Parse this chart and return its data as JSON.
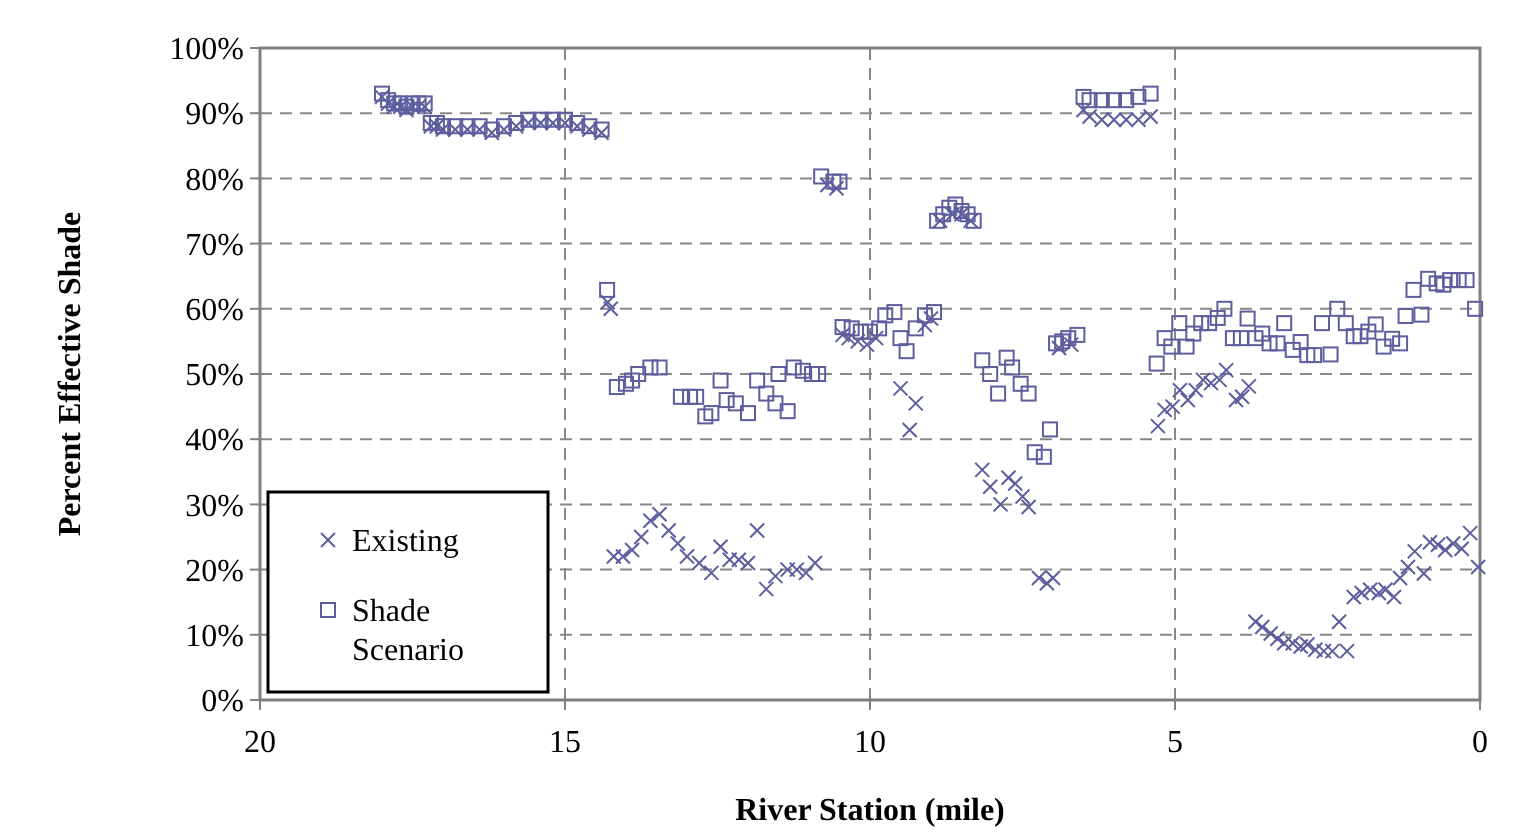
{
  "chart_data": {
    "type": "scatter",
    "xlabel": "River Station (mile)",
    "ylabel": "Percent Effective Shade",
    "xlim": [
      20,
      0
    ],
    "xticks": [
      20,
      15,
      10,
      5,
      0
    ],
    "ylim": [
      0,
      100
    ],
    "yticks": [
      {
        "value": 0,
        "label": "0%"
      },
      {
        "value": 10,
        "label": "10%"
      },
      {
        "value": 20,
        "label": "20%"
      },
      {
        "value": 30,
        "label": "30%"
      },
      {
        "value": 40,
        "label": "40%"
      },
      {
        "value": 50,
        "label": "50%"
      },
      {
        "value": 60,
        "label": "60%"
      },
      {
        "value": 70,
        "label": "70%"
      },
      {
        "value": 80,
        "label": "80%"
      },
      {
        "value": 90,
        "label": "90%"
      },
      {
        "value": 100,
        "label": "100%"
      }
    ],
    "grid": true,
    "legend": "bottom left",
    "series": [
      {
        "name": "Existing",
        "color": "#5e5e9e",
        "marker": "cross",
        "x": [
          18.0,
          17.9,
          17.8,
          17.7,
          17.6,
          17.5,
          17.4,
          17.3,
          17.2,
          17.1,
          17.0,
          16.8,
          16.6,
          16.4,
          16.2,
          16.0,
          15.8,
          15.6,
          15.4,
          15.2,
          15.0,
          14.8,
          14.6,
          14.4,
          14.3,
          14.25,
          14.2,
          14.05,
          13.9,
          13.75,
          13.6,
          13.45,
          13.3,
          13.15,
          13.0,
          12.8,
          12.6,
          12.45,
          12.3,
          12.15,
          12.0,
          11.85,
          11.7,
          11.55,
          11.35,
          11.2,
          11.05,
          10.9,
          10.7,
          10.55,
          10.45,
          10.35,
          10.2,
          10.05,
          9.9,
          9.5,
          9.35,
          9.25,
          9.1,
          9.0,
          8.85,
          8.65,
          8.5,
          8.35,
          8.16,
          8.03,
          7.86,
          7.73,
          7.62,
          7.5,
          7.4,
          7.23,
          7.1,
          7.0,
          6.9,
          6.7,
          6.5,
          6.4,
          6.2,
          6.0,
          5.8,
          5.6,
          5.4,
          5.28,
          5.17,
          5.04,
          4.92,
          4.79,
          4.66,
          4.54,
          4.41,
          4.27,
          4.16,
          4.0,
          3.9,
          3.79,
          3.68,
          3.57,
          3.43,
          3.32,
          3.21,
          3.07,
          2.94,
          2.83,
          2.7,
          2.56,
          2.42,
          2.31,
          2.18,
          2.07,
          1.94,
          1.8,
          1.66,
          1.55,
          1.41,
          1.31,
          1.18,
          1.07,
          0.92,
          0.82,
          0.69,
          0.57,
          0.44,
          0.3,
          0.16,
          0.03
        ],
        "values": [
          92.5,
          91.5,
          91,
          91,
          90.5,
          91,
          91,
          91,
          88,
          88,
          87.5,
          87.5,
          87.5,
          87.5,
          87,
          87.5,
          88,
          88.5,
          88.5,
          88.5,
          88.5,
          88,
          87.5,
          87,
          61,
          60,
          22,
          22,
          23,
          25,
          27.5,
          28.5,
          26,
          24,
          22,
          21,
          19.5,
          23.5,
          21.5,
          21.5,
          21,
          26,
          17,
          19,
          20,
          20,
          19.5,
          21,
          79,
          78.5,
          56,
          55.5,
          55,
          54.5,
          55.5,
          47.8,
          41.4,
          45.5,
          57.5,
          58.5,
          73.5,
          74.5,
          74.5,
          73.5,
          35.3,
          32.7,
          30,
          34.1,
          33.2,
          31.2,
          29.6,
          18.7,
          17.9,
          18.7,
          54,
          54.5,
          90.5,
          89.5,
          89,
          89,
          89,
          89,
          89.5,
          42,
          44.5,
          45,
          47.5,
          46,
          47.5,
          49.1,
          48.6,
          49.1,
          50.6,
          46,
          46.5,
          48.1,
          12,
          11.2,
          10.2,
          9.4,
          8.7,
          8.7,
          8.2,
          8.5,
          7.7,
          7.5,
          7.5,
          12,
          7.5,
          15.8,
          16.4,
          16.9,
          16.4,
          16.9,
          15.8,
          18.7,
          20.4,
          22.8,
          19.4,
          24.2,
          23.8,
          23,
          24,
          23.2,
          25.6,
          20.4
        ]
      },
      {
        "name": "Shade Scenario",
        "color": "#5e5e9e",
        "marker": "square",
        "x": [
          18.0,
          17.9,
          17.8,
          17.7,
          17.6,
          17.5,
          17.4,
          17.3,
          17.2,
          17.1,
          17.0,
          16.8,
          16.6,
          16.4,
          16.2,
          16.0,
          15.8,
          15.6,
          15.4,
          15.2,
          15.0,
          14.8,
          14.6,
          14.4,
          14.31,
          14.15,
          14.0,
          13.9,
          13.8,
          13.6,
          13.45,
          13.1,
          12.95,
          12.85,
          12.7,
          12.6,
          12.45,
          12.35,
          12.2,
          12.0,
          11.85,
          11.7,
          11.55,
          11.5,
          11.35,
          11.25,
          11.1,
          10.95,
          10.85,
          10.8,
          10.6,
          10.5,
          10.45,
          10.3,
          10.15,
          10.0,
          9.85,
          9.75,
          9.6,
          9.5,
          9.4,
          9.25,
          9.1,
          8.95,
          8.9,
          8.8,
          8.7,
          8.6,
          8.5,
          8.4,
          8.3,
          8.16,
          8.03,
          7.9,
          7.76,
          7.67,
          7.53,
          7.4,
          7.3,
          7.15,
          7.05,
          6.95,
          6.85,
          6.75,
          6.6,
          6.5,
          6.4,
          6.2,
          6.0,
          5.8,
          5.6,
          5.4,
          5.3,
          5.17,
          5.06,
          4.93,
          4.81,
          4.7,
          4.57,
          4.44,
          4.3,
          4.19,
          4.05,
          3.92,
          3.81,
          3.68,
          3.57,
          3.45,
          3.32,
          3.21,
          3.07,
          2.94,
          2.83,
          2.72,
          2.59,
          2.45,
          2.34,
          2.2,
          2.07,
          1.96,
          1.83,
          1.71,
          1.58,
          1.44,
          1.31,
          1.22,
          1.09,
          0.96,
          0.85,
          0.71,
          0.6,
          0.49,
          0.35,
          0.22,
          0.08
        ],
        "values": [
          93,
          92,
          91.5,
          91.5,
          91,
          91.5,
          91.5,
          91.5,
          88.5,
          88.5,
          88,
          88,
          88,
          88,
          87.5,
          88,
          88.5,
          89,
          89,
          89,
          89,
          88.5,
          88,
          87.5,
          62.9,
          48,
          48.5,
          49,
          50,
          51,
          51,
          46.5,
          46.5,
          46.5,
          43.5,
          44,
          49,
          46,
          45.5,
          44,
          49,
          47,
          45.5,
          50,
          44.3,
          51,
          50.5,
          50,
          50,
          80.3,
          79.5,
          79.5,
          57.2,
          57,
          56.5,
          56.5,
          57,
          59,
          59.5,
          55.5,
          53.5,
          57,
          59,
          59.5,
          73.5,
          74.5,
          75.5,
          76,
          75,
          74.5,
          73.5,
          52.1,
          50,
          47,
          52.5,
          51,
          48.5,
          47,
          38,
          37.3,
          41.5,
          54.7,
          55,
          55.5,
          56,
          92.5,
          92,
          92,
          92,
          92,
          92.5,
          93,
          51.6,
          55.5,
          54.2,
          57.8,
          54.2,
          56.2,
          57.8,
          57.8,
          58.6,
          60,
          55.5,
          55.5,
          58.5,
          55.5,
          56.2,
          54.7,
          54.7,
          57.8,
          53.7,
          54.9,
          52.9,
          52.9,
          57.8,
          53,
          60,
          57.8,
          55.8,
          55.8,
          56.5,
          57.6,
          54.2,
          55.4,
          54.7,
          58.9,
          62.9,
          59.1,
          64.6,
          63.9,
          63.7,
          64.4,
          64.4,
          64.4,
          60
        ]
      }
    ]
  }
}
